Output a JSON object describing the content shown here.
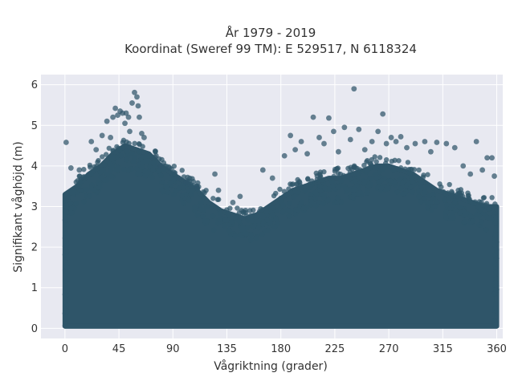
{
  "chart_data": {
    "type": "scatter",
    "title": "År 1979 - 2019",
    "subtitle": "Koordinat (Sweref 99 TM): E 529517, N 6118324",
    "xlabel": "Vågriktning (grader)",
    "ylabel": "Signifikant våghöjd (m)",
    "xlim": [
      -20,
      365
    ],
    "ylim": [
      -0.25,
      6.25
    ],
    "xticks": [
      0,
      45,
      90,
      135,
      180,
      225,
      270,
      315,
      360
    ],
    "xtick_labels": [
      "0",
      "45",
      "90",
      "135",
      "180",
      "225",
      "270",
      "315",
      "360"
    ],
    "yticks": [
      0,
      1,
      2,
      3,
      4,
      5,
      6
    ],
    "ytick_labels": [
      "0",
      "1",
      "2",
      "3",
      "4",
      "5",
      "6"
    ],
    "grid": true,
    "background": "#E8E9F1",
    "marker_color": "#2F5569",
    "dense_envelope": {
      "x": [
        0,
        10,
        20,
        30,
        40,
        50,
        60,
        70,
        80,
        90,
        100,
        110,
        120,
        130,
        140,
        150,
        160,
        170,
        180,
        190,
        200,
        210,
        220,
        230,
        240,
        250,
        260,
        270,
        280,
        290,
        300,
        310,
        320,
        330,
        340,
        350,
        360
      ],
      "y_top": [
        3.3,
        3.5,
        3.8,
        4.0,
        4.3,
        4.5,
        4.4,
        4.3,
        4.0,
        3.8,
        3.6,
        3.4,
        3.1,
        2.9,
        2.8,
        2.7,
        2.8,
        3.0,
        3.2,
        3.4,
        3.5,
        3.6,
        3.7,
        3.7,
        3.8,
        3.9,
        4.0,
        4.0,
        3.9,
        3.8,
        3.6,
        3.4,
        3.3,
        3.2,
        3.1,
        3.0,
        3.0
      ],
      "y_bottom": 0.05
    },
    "outliers": [
      {
        "x": 1,
        "y": 4.58
      },
      {
        "x": 5,
        "y": 3.95
      },
      {
        "x": 12,
        "y": 3.9
      },
      {
        "x": 22,
        "y": 4.6
      },
      {
        "x": 26,
        "y": 4.4
      },
      {
        "x": 31,
        "y": 4.75
      },
      {
        "x": 35,
        "y": 5.1
      },
      {
        "x": 38,
        "y": 4.7
      },
      {
        "x": 40,
        "y": 5.2
      },
      {
        "x": 42,
        "y": 5.42
      },
      {
        "x": 44,
        "y": 5.25
      },
      {
        "x": 46,
        "y": 5.35
      },
      {
        "x": 48,
        "y": 5.3
      },
      {
        "x": 50,
        "y": 5.05
      },
      {
        "x": 51,
        "y": 5.3
      },
      {
        "x": 53,
        "y": 5.2
      },
      {
        "x": 54,
        "y": 4.85
      },
      {
        "x": 56,
        "y": 5.55
      },
      {
        "x": 58,
        "y": 5.81
      },
      {
        "x": 60,
        "y": 5.7
      },
      {
        "x": 61,
        "y": 5.48
      },
      {
        "x": 62,
        "y": 5.2
      },
      {
        "x": 64,
        "y": 4.8
      },
      {
        "x": 66,
        "y": 4.7
      },
      {
        "x": 76,
        "y": 4.25
      },
      {
        "x": 80,
        "y": 4.0
      },
      {
        "x": 87,
        "y": 3.95
      },
      {
        "x": 95,
        "y": 3.7
      },
      {
        "x": 101,
        "y": 3.6
      },
      {
        "x": 110,
        "y": 3.5
      },
      {
        "x": 125,
        "y": 3.8
      },
      {
        "x": 128,
        "y": 3.4
      },
      {
        "x": 140,
        "y": 3.1
      },
      {
        "x": 146,
        "y": 3.25
      },
      {
        "x": 165,
        "y": 3.9
      },
      {
        "x": 173,
        "y": 3.7
      },
      {
        "x": 183,
        "y": 4.25
      },
      {
        "x": 188,
        "y": 4.75
      },
      {
        "x": 192,
        "y": 4.4
      },
      {
        "x": 197,
        "y": 4.6
      },
      {
        "x": 202,
        "y": 4.3
      },
      {
        "x": 207,
        "y": 5.2
      },
      {
        "x": 212,
        "y": 4.7
      },
      {
        "x": 216,
        "y": 4.55
      },
      {
        "x": 220,
        "y": 5.18
      },
      {
        "x": 224,
        "y": 4.85
      },
      {
        "x": 228,
        "y": 4.35
      },
      {
        "x": 233,
        "y": 4.95
      },
      {
        "x": 238,
        "y": 4.65
      },
      {
        "x": 241,
        "y": 5.9
      },
      {
        "x": 245,
        "y": 4.9
      },
      {
        "x": 250,
        "y": 4.4
      },
      {
        "x": 256,
        "y": 4.6
      },
      {
        "x": 261,
        "y": 4.85
      },
      {
        "x": 265,
        "y": 5.28
      },
      {
        "x": 268,
        "y": 4.55
      },
      {
        "x": 272,
        "y": 4.7
      },
      {
        "x": 276,
        "y": 4.6
      },
      {
        "x": 280,
        "y": 4.72
      },
      {
        "x": 285,
        "y": 4.45
      },
      {
        "x": 292,
        "y": 4.55
      },
      {
        "x": 300,
        "y": 4.6
      },
      {
        "x": 305,
        "y": 4.35
      },
      {
        "x": 310,
        "y": 4.58
      },
      {
        "x": 318,
        "y": 4.55
      },
      {
        "x": 325,
        "y": 4.45
      },
      {
        "x": 332,
        "y": 4.0
      },
      {
        "x": 338,
        "y": 3.8
      },
      {
        "x": 343,
        "y": 4.6
      },
      {
        "x": 348,
        "y": 3.9
      },
      {
        "x": 352,
        "y": 4.2
      },
      {
        "x": 356,
        "y": 4.2
      },
      {
        "x": 358,
        "y": 3.75
      }
    ]
  }
}
